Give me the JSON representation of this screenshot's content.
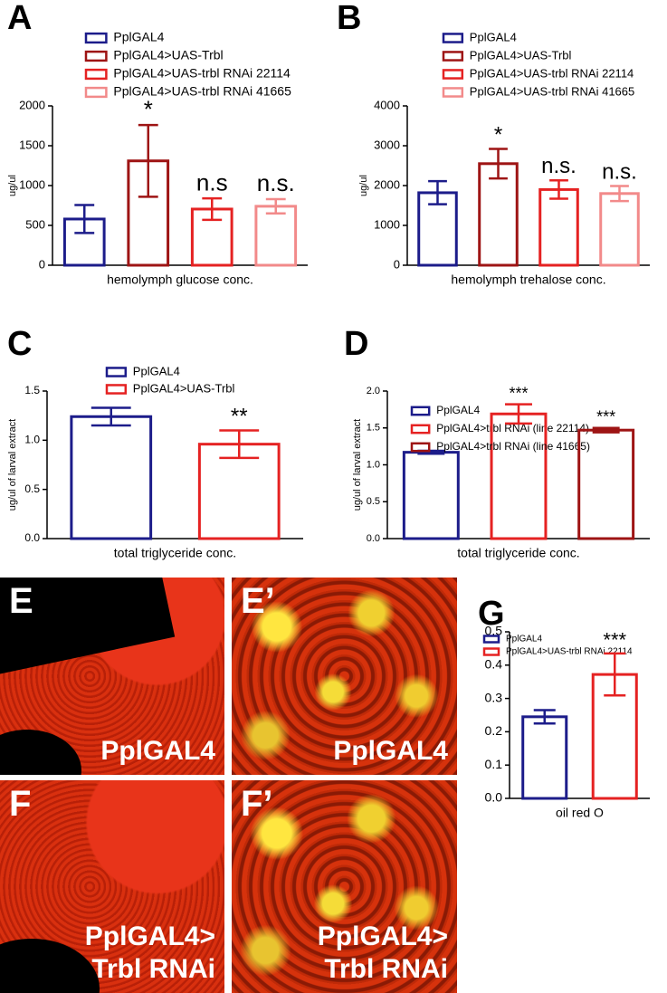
{
  "chart_data": [
    {
      "type": "bar",
      "panel": "A",
      "xlabel": "hemolymph glucose conc.",
      "ylabel": "ug/ul",
      "ylim": [
        0,
        2000
      ],
      "yticks": [
        0,
        500,
        1000,
        1500,
        2000
      ],
      "series": [
        {
          "name": "PplGAL4",
          "color": "#1c1c8a",
          "values": [
            580
          ],
          "errors": [
            175
          ]
        },
        {
          "name": "PplGAL4>UAS-Trbl",
          "color": "#9e1414",
          "values": [
            1310
          ],
          "errors": [
            450
          ],
          "annotation": "*"
        },
        {
          "name": "PplGAL4>UAS-trbl RNAi 22114",
          "color": "#e52222",
          "values": [
            705
          ],
          "errors": [
            135
          ],
          "annotation": "n.s"
        },
        {
          "name": "PplGAL4>UAS-trbl RNAi 41665",
          "color": "#f28a8a",
          "values": [
            740
          ],
          "errors": [
            90
          ],
          "annotation": "n.s."
        }
      ]
    },
    {
      "type": "bar",
      "panel": "B",
      "xlabel": "hemolymph trehalose conc.",
      "ylabel": "ug/ul",
      "ylim": [
        0,
        4000
      ],
      "yticks": [
        0,
        1000,
        2000,
        3000,
        4000
      ],
      "series": [
        {
          "name": "PplGAL4",
          "color": "#1c1c8a",
          "values": [
            1820
          ],
          "errors": [
            290
          ]
        },
        {
          "name": "PplGAL4>UAS-Trbl",
          "color": "#9e1414",
          "values": [
            2550
          ],
          "errors": [
            370
          ],
          "annotation": "*"
        },
        {
          "name": "PplGAL4>UAS-trbl RNAi 22114",
          "color": "#e52222",
          "values": [
            1900
          ],
          "errors": [
            230
          ],
          "annotation": "n.s."
        },
        {
          "name": "PplGAL4>UAS-trbl RNAi 41665",
          "color": "#f28a8a",
          "values": [
            1800
          ],
          "errors": [
            190
          ],
          "annotation": "n.s."
        }
      ]
    },
    {
      "type": "bar",
      "panel": "C",
      "xlabel": "total triglyceride conc.",
      "ylabel": "ug/ul of larval extract",
      "ylim": [
        0,
        1.5
      ],
      "yticks": [
        {
          "value": 0,
          "label": "0.0"
        },
        0.5,
        {
          "value": 1,
          "label": "1.0"
        },
        1.5
      ],
      "series": [
        {
          "name": "PplGAL4",
          "color": "#1c1c8a",
          "values": [
            1.24
          ],
          "errors": [
            0.09
          ]
        },
        {
          "name": "PplGAL4>UAS-Trbl",
          "color": "#e52222",
          "values": [
            0.96
          ],
          "errors": [
            0.14
          ],
          "annotation": "**"
        }
      ]
    },
    {
      "type": "bar",
      "panel": "D",
      "xlabel": "total triglyceride conc.",
      "ylabel": "ug/ul of larval extract",
      "ylim": [
        0,
        2
      ],
      "yticks": [
        {
          "value": 0,
          "label": "0.0"
        },
        0.5,
        {
          "value": 1,
          "label": "1.0"
        },
        1.5,
        {
          "value": 2,
          "label": "2.0"
        }
      ],
      "series": [
        {
          "name": "PplGAL4",
          "color": "#1c1c8a",
          "values": [
            1.17
          ],
          "errors": [
            0.02
          ]
        },
        {
          "name": "PplGAL4>trbl RNAi (line 22114)",
          "color": "#e52222",
          "values": [
            1.69
          ],
          "errors": [
            0.13
          ],
          "annotation": "***"
        },
        {
          "name": "PplGAL4>trbl RNAi (line 41665)",
          "color": "#9e1414",
          "values": [
            1.47
          ],
          "errors": [
            0.03
          ],
          "annotation": "***"
        }
      ]
    },
    {
      "type": "bar",
      "panel": "G",
      "xlabel": "oil red O",
      "ylim": [
        0,
        0.5
      ],
      "yticks": [
        {
          "value": 0,
          "label": "0.0"
        },
        0.1,
        0.2,
        0.3,
        0.4,
        0.5
      ],
      "series": [
        {
          "name": "PplGAL4",
          "color": "#1c1c8a",
          "values": [
            0.245
          ],
          "errors": [
            0.02
          ]
        },
        {
          "name": "PplGAL4>UAS-trbl RNAi 22114",
          "color": "#e52222",
          "values": [
            0.372
          ],
          "errors": [
            0.063
          ],
          "annotation": "***"
        }
      ]
    }
  ],
  "image_panels": [
    {
      "letter": "E",
      "label_lines": [
        "PplGAL4"
      ]
    },
    {
      "letter": "E’",
      "label_lines": [
        "PplGAL4"
      ]
    },
    {
      "letter": "F",
      "label_lines": [
        "PplGAL4>",
        "Trbl RNAi"
      ]
    },
    {
      "letter": "F’",
      "label_lines": [
        "PplGAL4>",
        "Trbl RNAi"
      ]
    }
  ]
}
